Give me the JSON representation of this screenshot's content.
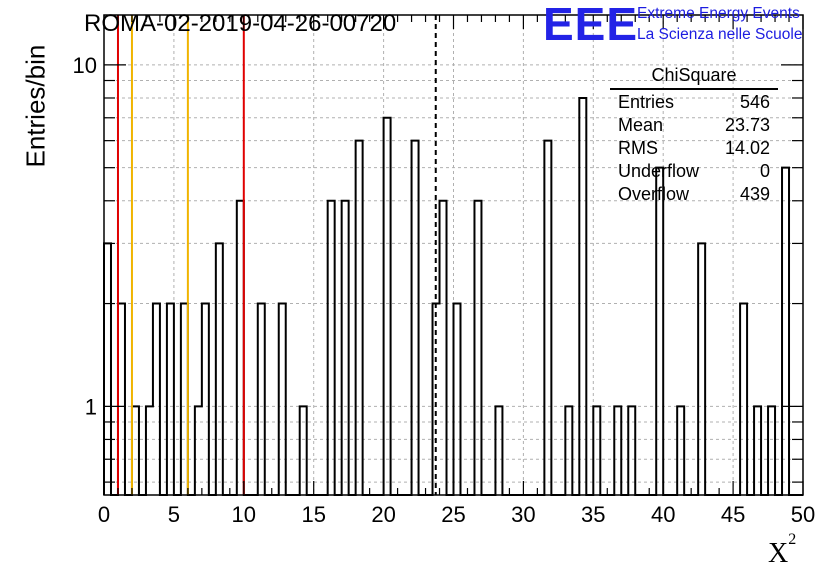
{
  "header": {
    "title": "ROMA-02-2019-04-26-00720",
    "logo": "EEE",
    "logo_line1": "Extreme Energy Events",
    "logo_line2": "La Scienza nelle Scuole"
  },
  "stats": {
    "name": "ChiSquare",
    "rows": [
      {
        "label": "Entries",
        "value": "546"
      },
      {
        "label": "Mean",
        "value": "23.73"
      },
      {
        "label": "RMS",
        "value": "14.02"
      },
      {
        "label": "Underflow",
        "value": "0"
      },
      {
        "label": "Overflow",
        "value": "439"
      }
    ]
  },
  "colors": {
    "red_line": "#e00000",
    "yellow_line": "#f0b400",
    "frame": "#000000",
    "grid": "#b0b0b0"
  },
  "chart_data": {
    "type": "bar",
    "histogram": true,
    "ylabel": "Entries/bin",
    "xlabel": "X",
    "xlabel_superscript": "2",
    "xlim": [
      0,
      50
    ],
    "ylim": [
      0.55,
      14
    ],
    "yscale": "log",
    "grid": true,
    "bin_width": 0.5,
    "x_ticks": [
      0,
      5,
      10,
      15,
      20,
      25,
      30,
      35,
      40,
      45,
      50
    ],
    "y_ticks": [
      1,
      10
    ],
    "x_tick_labels": [
      "0",
      "5",
      "10",
      "15",
      "20",
      "25",
      "30",
      "35",
      "40",
      "45",
      "50"
    ],
    "y_tick_labels": [
      "1",
      "10"
    ],
    "bins": [
      {
        "x": 0.0,
        "count": 3
      },
      {
        "x": 1.0,
        "count": 2
      },
      {
        "x": 2.0,
        "count": 1
      },
      {
        "x": 3.0,
        "count": 1
      },
      {
        "x": 3.5,
        "count": 2
      },
      {
        "x": 4.5,
        "count": 2
      },
      {
        "x": 5.5,
        "count": 2
      },
      {
        "x": 6.5,
        "count": 1
      },
      {
        "x": 7.0,
        "count": 2
      },
      {
        "x": 8.0,
        "count": 3
      },
      {
        "x": 9.5,
        "count": 4
      },
      {
        "x": 11.0,
        "count": 2
      },
      {
        "x": 12.5,
        "count": 2
      },
      {
        "x": 14.0,
        "count": 1
      },
      {
        "x": 16.0,
        "count": 4
      },
      {
        "x": 17.0,
        "count": 4
      },
      {
        "x": 18.0,
        "count": 6
      },
      {
        "x": 20.0,
        "count": 7
      },
      {
        "x": 22.0,
        "count": 6
      },
      {
        "x": 23.5,
        "count": 2
      },
      {
        "x": 24.0,
        "count": 4
      },
      {
        "x": 25.0,
        "count": 2
      },
      {
        "x": 26.5,
        "count": 4
      },
      {
        "x": 28.0,
        "count": 1
      },
      {
        "x": 31.5,
        "count": 6
      },
      {
        "x": 33.0,
        "count": 1
      },
      {
        "x": 34.0,
        "count": 8
      },
      {
        "x": 35.0,
        "count": 1
      },
      {
        "x": 36.5,
        "count": 1
      },
      {
        "x": 37.5,
        "count": 1
      },
      {
        "x": 39.5,
        "count": 5
      },
      {
        "x": 41.0,
        "count": 1
      },
      {
        "x": 42.5,
        "count": 3
      },
      {
        "x": 45.5,
        "count": 2
      },
      {
        "x": 46.5,
        "count": 1
      },
      {
        "x": 47.5,
        "count": 1
      },
      {
        "x": 48.5,
        "count": 5
      }
    ],
    "vertical_lines": [
      {
        "x": 1.0,
        "color": "red"
      },
      {
        "x": 2.0,
        "color": "yellow"
      },
      {
        "x": 6.0,
        "color": "yellow"
      },
      {
        "x": 10.0,
        "color": "red"
      },
      {
        "x": 23.73,
        "color": "black",
        "style": "dashed"
      }
    ]
  }
}
